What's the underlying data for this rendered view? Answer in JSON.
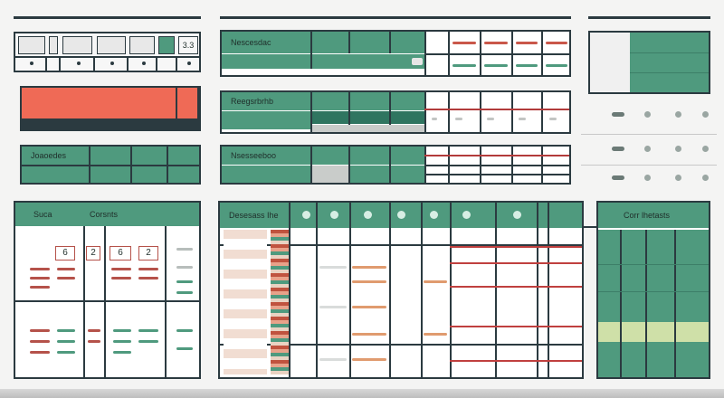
{
  "top_left": {
    "badge": "3.3"
  },
  "mid_table_1": {
    "title": "Nescesdac"
  },
  "mid_table_2": {
    "title": "Reegsrbrhb"
  },
  "left_table_2": {
    "title": "Joaoedes"
  },
  "mid_table_3": {
    "title": "Nsesseeboo"
  },
  "bottom_left": {
    "col1": "Suca",
    "col2": "Corsnts"
  },
  "bottom_mid": {
    "title": "Desesass Ihe"
  },
  "bottom_right": {
    "title": "Corr lhetasts"
  },
  "stepper_values": [
    "6",
    "2",
    "6",
    "2"
  ],
  "colors": {
    "accent_green": "#4f9a7e",
    "dark_green": "#2f7560",
    "accent_red": "#ef6a56",
    "light_green": "#cfe0a8"
  }
}
